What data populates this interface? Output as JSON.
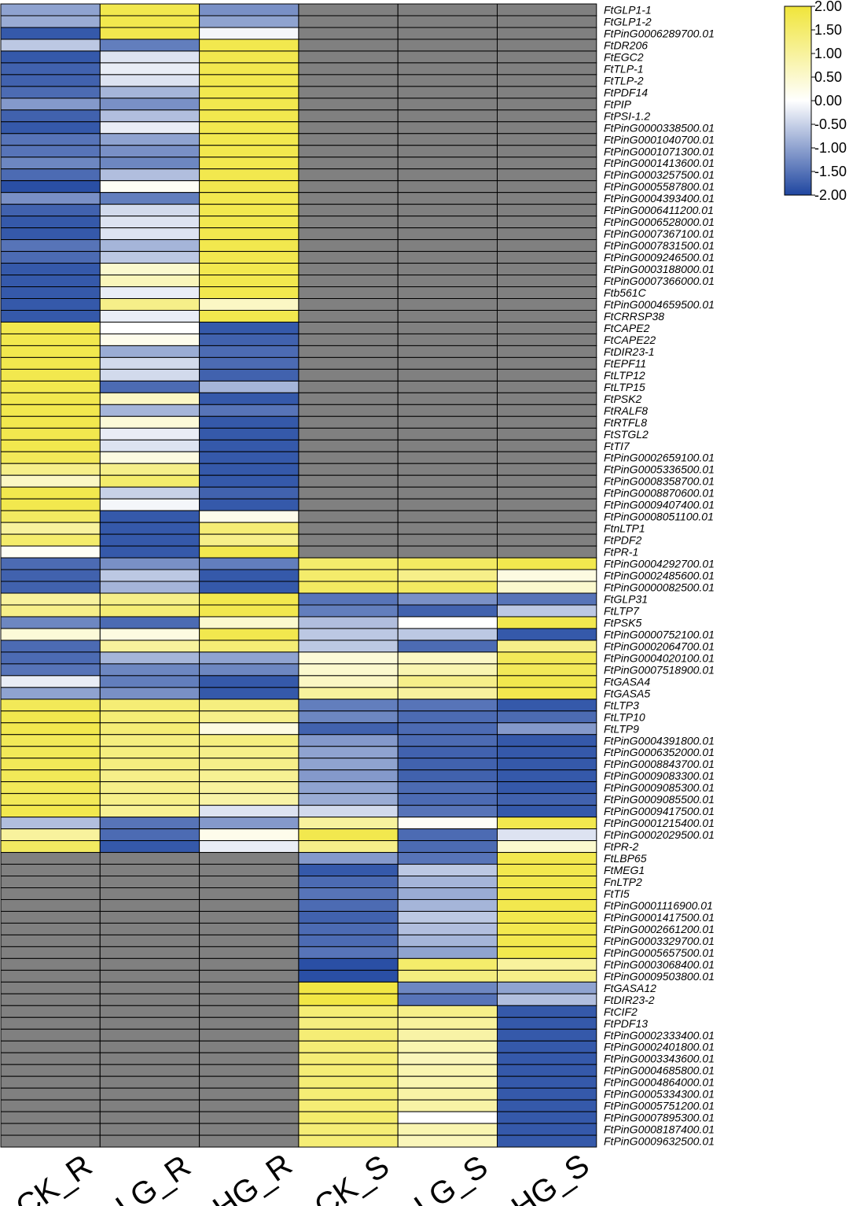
{
  "chart_data": {
    "type": "heatmap",
    "columns": [
      "CK_R",
      "LG_R",
      "HG_R",
      "CK_S",
      "LG_S",
      "HG_S"
    ],
    "colorscale": {
      "min": -2.0,
      "max": 2.0,
      "low_color": "#1f46a0",
      "mid_color": "#ffffff",
      "high_color": "#f0e53a",
      "missing_color": "#808080",
      "ticks": [
        "2.00",
        "1.50",
        "1.00",
        "0.50",
        "0.00",
        "-0.50",
        "-1.00",
        "-1.50",
        "-2.00"
      ]
    },
    "rows": [
      {
        "gene": "FtGLP1-1",
        "values": [
          -1.0,
          1.8,
          -1.2,
          null,
          null,
          null
        ]
      },
      {
        "gene": "FtGLP1-2",
        "values": [
          -0.9,
          1.8,
          -1.0,
          null,
          null,
          null
        ]
      },
      {
        "gene": "FtPinG0006289700.01",
        "values": [
          -1.8,
          1.8,
          -0.1,
          null,
          null,
          null
        ]
      },
      {
        "gene": "FtDR206",
        "values": [
          -0.6,
          -1.4,
          1.8,
          null,
          null,
          null
        ]
      },
      {
        "gene": "FtEGC2",
        "values": [
          -1.8,
          -0.3,
          1.8,
          null,
          null,
          null
        ]
      },
      {
        "gene": "FtTLP-1",
        "values": [
          -1.7,
          -0.2,
          1.8,
          null,
          null,
          null
        ]
      },
      {
        "gene": "FtTLP-2",
        "values": [
          -1.7,
          -0.3,
          1.8,
          null,
          null,
          null
        ]
      },
      {
        "gene": "FtPDF14",
        "values": [
          -1.6,
          -0.8,
          1.8,
          null,
          null,
          null
        ]
      },
      {
        "gene": "FtPIP",
        "values": [
          -1.1,
          -1.2,
          1.8,
          null,
          null,
          null
        ]
      },
      {
        "gene": "FtPSI-1.2",
        "values": [
          -1.7,
          -0.7,
          1.8,
          null,
          null,
          null
        ]
      },
      {
        "gene": "FtPinG0000338500.01",
        "values": [
          -1.8,
          -0.2,
          1.8,
          null,
          null,
          null
        ]
      },
      {
        "gene": "FtPinG0001040700.01",
        "values": [
          -1.5,
          -1.0,
          1.8,
          null,
          null,
          null
        ]
      },
      {
        "gene": "FtPinG0001071300.01",
        "values": [
          -1.5,
          -1.2,
          1.8,
          null,
          null,
          null
        ]
      },
      {
        "gene": "FtPinG0001413600.01",
        "values": [
          -1.3,
          -1.3,
          1.8,
          null,
          null,
          null
        ]
      },
      {
        "gene": "FtPinG0003257500.01",
        "values": [
          -1.6,
          -0.7,
          1.8,
          null,
          null,
          null
        ]
      },
      {
        "gene": "FtPinG0005587800.01",
        "values": [
          -1.9,
          0.1,
          1.8,
          null,
          null,
          null
        ]
      },
      {
        "gene": "FtPinG0004393400.01",
        "values": [
          -1.2,
          -1.4,
          1.8,
          null,
          null,
          null
        ]
      },
      {
        "gene": "FtPinG0006411200.01",
        "values": [
          -1.7,
          -0.4,
          1.8,
          null,
          null,
          null
        ]
      },
      {
        "gene": "FtPinG0006528000.01",
        "values": [
          -1.8,
          -0.3,
          1.8,
          null,
          null,
          null
        ]
      },
      {
        "gene": "FtPinG0007367100.01",
        "values": [
          -1.8,
          -0.3,
          1.8,
          null,
          null,
          null
        ]
      },
      {
        "gene": "FtPinG0007831500.01",
        "values": [
          -1.5,
          -0.8,
          1.8,
          null,
          null,
          null
        ]
      },
      {
        "gene": "FtPinG0009246500.01",
        "values": [
          -1.6,
          -0.6,
          1.8,
          null,
          null,
          null
        ]
      },
      {
        "gene": "FtPinG0003188000.01",
        "values": [
          -1.8,
          0.5,
          1.8,
          null,
          null,
          null
        ]
      },
      {
        "gene": "FtPinG0007366000.01",
        "values": [
          -1.8,
          0.7,
          1.8,
          null,
          null,
          null
        ]
      },
      {
        "gene": "Ftb561C",
        "values": [
          -1.8,
          -0.2,
          1.8,
          null,
          null,
          null
        ]
      },
      {
        "gene": "FtPinG0004659500.01",
        "values": [
          -1.8,
          1.2,
          0.6,
          null,
          null,
          null
        ]
      },
      {
        "gene": "FtCRRSP38",
        "values": [
          -1.8,
          -0.2,
          1.8,
          null,
          null,
          null
        ]
      },
      {
        "gene": "FtCAPE2",
        "values": [
          1.8,
          0.0,
          -1.8,
          null,
          null,
          null
        ]
      },
      {
        "gene": "FtCAPE22",
        "values": [
          1.8,
          0.2,
          -1.7,
          null,
          null,
          null
        ]
      },
      {
        "gene": "FtDIR23-1",
        "values": [
          1.8,
          -0.9,
          -1.6,
          null,
          null,
          null
        ]
      },
      {
        "gene": "FtEPF11",
        "values": [
          1.8,
          -0.4,
          -1.6,
          null,
          null,
          null
        ]
      },
      {
        "gene": "FtLTP12",
        "values": [
          1.8,
          -0.4,
          -1.7,
          null,
          null,
          null
        ]
      },
      {
        "gene": "FtLTP15",
        "values": [
          1.8,
          -1.6,
          -0.8,
          null,
          null,
          null
        ]
      },
      {
        "gene": "FtPSK2",
        "values": [
          1.8,
          0.6,
          -1.8,
          null,
          null,
          null
        ]
      },
      {
        "gene": "FtRALF8",
        "values": [
          1.8,
          -0.8,
          -1.5,
          null,
          null,
          null
        ]
      },
      {
        "gene": "FtRTFL8",
        "values": [
          1.8,
          0.4,
          -1.8,
          null,
          null,
          null
        ]
      },
      {
        "gene": "FtSTGL2",
        "values": [
          1.8,
          -0.2,
          -1.8,
          null,
          null,
          null
        ]
      },
      {
        "gene": "FtTI7",
        "values": [
          1.8,
          -0.3,
          -1.8,
          null,
          null,
          null
        ]
      },
      {
        "gene": "FtPinG0002659100.01",
        "values": [
          1.7,
          0.3,
          -1.8,
          null,
          null,
          null
        ]
      },
      {
        "gene": "FtPinG0005336500.01",
        "values": [
          1.2,
          1.2,
          -1.8,
          null,
          null,
          null
        ]
      },
      {
        "gene": "FtPinG0008358700.01",
        "values": [
          0.6,
          1.5,
          -1.8,
          null,
          null,
          null
        ]
      },
      {
        "gene": "FtPinG0008870600.01",
        "values": [
          1.8,
          -0.5,
          -1.7,
          null,
          null,
          null
        ]
      },
      {
        "gene": "FtPinG0009407400.01",
        "values": [
          1.8,
          -0.1,
          -1.8,
          null,
          null,
          null
        ]
      },
      {
        "gene": "FtPinG0008051100.01",
        "values": [
          1.6,
          -1.8,
          0.2,
          null,
          null,
          null
        ]
      },
      {
        "gene": "FtnLTP1",
        "values": [
          1.0,
          -1.8,
          1.4,
          null,
          null,
          null
        ]
      },
      {
        "gene": "FtPDF2",
        "values": [
          1.5,
          -1.8,
          1.2,
          null,
          null,
          null
        ]
      },
      {
        "gene": "FtPR-1",
        "values": [
          0.1,
          -1.8,
          1.8,
          null,
          null,
          null
        ]
      },
      {
        "gene": "FtPinG0004292700.01",
        "values": [
          -1.6,
          -1.2,
          -1.4,
          1.5,
          1.6,
          1.8
        ]
      },
      {
        "gene": "FtPinG0002485600.01",
        "values": [
          -1.7,
          -0.6,
          -1.8,
          1.5,
          1.2,
          0.3
        ]
      },
      {
        "gene": "FtPinG0000082500.01",
        "values": [
          -1.7,
          -0.8,
          -1.8,
          1.6,
          1.6,
          0.5
        ]
      },
      {
        "gene": "FtGLP31",
        "values": [
          1.0,
          1.2,
          1.8,
          -1.5,
          -1.2,
          -1.5
        ]
      },
      {
        "gene": "FtLTP7",
        "values": [
          1.2,
          1.4,
          1.8,
          -1.4,
          -1.7,
          -0.6
        ]
      },
      {
        "gene": "FtPSK5",
        "values": [
          -1.3,
          -1.6,
          0.5,
          -0.7,
          0.0,
          1.8
        ]
      },
      {
        "gene": "FtPinG0000752100.01",
        "values": [
          0.4,
          0.3,
          1.8,
          -0.6,
          -0.6,
          -1.8
        ]
      },
      {
        "gene": "FtPinG0002064700.01",
        "values": [
          -1.6,
          1.0,
          1.4,
          -0.6,
          -1.6,
          1.2
        ]
      },
      {
        "gene": "FtPinG0004020100.01",
        "values": [
          -1.6,
          -0.8,
          -1.0,
          0.4,
          0.6,
          1.7
        ]
      },
      {
        "gene": "FtPinG0007518900.01",
        "values": [
          -1.5,
          -1.3,
          -1.3,
          0.5,
          0.8,
          1.7
        ]
      },
      {
        "gene": "FtGASA4",
        "values": [
          -0.2,
          -1.4,
          -1.8,
          0.6,
          1.2,
          1.8
        ]
      },
      {
        "gene": "FtGASA5",
        "values": [
          -1.0,
          -1.2,
          -1.8,
          1.0,
          1.0,
          1.8
        ]
      },
      {
        "gene": "FtLTP3",
        "values": [
          1.7,
          1.4,
          1.3,
          -1.4,
          -1.5,
          -1.8
        ]
      },
      {
        "gene": "FtLTP10",
        "values": [
          1.8,
          1.4,
          1.2,
          -1.3,
          -1.6,
          -1.6
        ]
      },
      {
        "gene": "FtLTP9",
        "values": [
          1.8,
          1.4,
          0.3,
          -1.7,
          -1.6,
          -1.1
        ]
      },
      {
        "gene": "FtPinG0004391800.01",
        "values": [
          1.7,
          1.3,
          1.3,
          -1.1,
          -1.6,
          -1.8
        ]
      },
      {
        "gene": "FtPinG0006352000.01",
        "values": [
          1.7,
          1.3,
          1.2,
          -1.0,
          -1.7,
          -1.8
        ]
      },
      {
        "gene": "FtPinG0008843700.01",
        "values": [
          1.7,
          1.3,
          1.2,
          -1.0,
          -1.7,
          -1.8
        ]
      },
      {
        "gene": "FtPinG0009083300.01",
        "values": [
          1.7,
          1.2,
          1.1,
          -1.1,
          -1.7,
          -1.8
        ]
      },
      {
        "gene": "FtPinG0009085300.01",
        "values": [
          1.7,
          1.2,
          1.0,
          -1.0,
          -1.6,
          -1.8
        ]
      },
      {
        "gene": "FtPinG0009085500.01",
        "values": [
          1.7,
          1.2,
          0.9,
          -0.9,
          -1.6,
          -1.7
        ]
      },
      {
        "gene": "FtPinG0009417500.01",
        "values": [
          1.8,
          1.1,
          -0.3,
          -0.4,
          -1.5,
          -1.8
        ]
      },
      {
        "gene": "FtPinG0001215400.01",
        "values": [
          -0.7,
          -1.5,
          -1.1,
          1.0,
          0.1,
          1.8
        ]
      },
      {
        "gene": "FtPinG0002029500.01",
        "values": [
          1.0,
          -1.6,
          0.2,
          1.8,
          -1.6,
          -0.3
        ]
      },
      {
        "gene": "FtPR-2",
        "values": [
          1.6,
          -1.8,
          -0.2,
          1.2,
          -1.6,
          0.5
        ]
      },
      {
        "gene": "FtLBP65",
        "values": [
          null,
          null,
          null,
          -1.1,
          -1.5,
          1.8
        ]
      },
      {
        "gene": "FtMEG1",
        "values": [
          null,
          null,
          null,
          -1.8,
          -0.6,
          1.8
        ]
      },
      {
        "gene": "FnLTP2",
        "values": [
          null,
          null,
          null,
          -1.6,
          -0.8,
          1.8
        ]
      },
      {
        "gene": "FtTI5",
        "values": [
          null,
          null,
          null,
          -1.5,
          -0.9,
          1.8
        ]
      },
      {
        "gene": "FtPinG0001116900.01",
        "values": [
          null,
          null,
          null,
          -1.6,
          -0.8,
          1.8
        ]
      },
      {
        "gene": "FtPinG0001417500.01",
        "values": [
          null,
          null,
          null,
          -1.7,
          -0.6,
          1.8
        ]
      },
      {
        "gene": "FtPinG0002661200.01",
        "values": [
          null,
          null,
          null,
          -1.6,
          -0.7,
          1.8
        ]
      },
      {
        "gene": "FtPinG0003329700.01",
        "values": [
          null,
          null,
          null,
          -1.6,
          -0.8,
          1.8
        ]
      },
      {
        "gene": "FtPinG0005657500.01",
        "values": [
          null,
          null,
          null,
          -1.5,
          -1.0,
          1.8
        ]
      },
      {
        "gene": "FtPinG0003068400.01",
        "values": [
          null,
          null,
          null,
          -1.9,
          1.5,
          1.0
        ]
      },
      {
        "gene": "FtPinG0009503800.01",
        "values": [
          null,
          null,
          null,
          -1.9,
          1.3,
          1.2
        ]
      },
      {
        "gene": "FtGASA12",
        "values": [
          null,
          null,
          null,
          1.9,
          -1.3,
          -1.0
        ]
      },
      {
        "gene": "FtDIR23-2",
        "values": [
          null,
          null,
          null,
          1.9,
          -1.5,
          -0.7
        ]
      },
      {
        "gene": "FtCIF2",
        "values": [
          null,
          null,
          null,
          1.4,
          1.2,
          -1.8
        ]
      },
      {
        "gene": "FtPDF13",
        "values": [
          null,
          null,
          null,
          1.3,
          1.0,
          -1.8
        ]
      },
      {
        "gene": "FtPinG0002333400.01",
        "values": [
          null,
          null,
          null,
          1.4,
          0.9,
          -1.8
        ]
      },
      {
        "gene": "FtPinG0002401800.01",
        "values": [
          null,
          null,
          null,
          1.4,
          0.8,
          -1.8
        ]
      },
      {
        "gene": "FtPinG0003343600.01",
        "values": [
          null,
          null,
          null,
          1.4,
          0.7,
          -1.8
        ]
      },
      {
        "gene": "FtPinG0004685800.01",
        "values": [
          null,
          null,
          null,
          1.4,
          0.8,
          -1.8
        ]
      },
      {
        "gene": "FtPinG0004864000.01",
        "values": [
          null,
          null,
          null,
          1.4,
          0.8,
          -1.8
        ]
      },
      {
        "gene": "FtPinG0005334300.01",
        "values": [
          null,
          null,
          null,
          1.4,
          0.9,
          -1.8
        ]
      },
      {
        "gene": "FtPinG0005751200.01",
        "values": [
          null,
          null,
          null,
          1.4,
          0.9,
          -1.8
        ]
      },
      {
        "gene": "FtPinG0007895300.01",
        "values": [
          null,
          null,
          null,
          1.5,
          0.0,
          -1.8
        ]
      },
      {
        "gene": "FtPinG0008187400.01",
        "values": [
          null,
          null,
          null,
          1.4,
          0.8,
          -1.8
        ]
      },
      {
        "gene": "FtPinG0009632500.01",
        "values": [
          null,
          null,
          null,
          1.4,
          0.7,
          -1.8
        ]
      }
    ]
  }
}
